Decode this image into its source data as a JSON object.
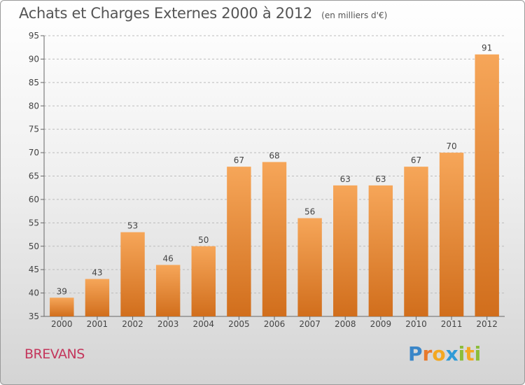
{
  "header": {
    "title": "Achats et Charges Externes 2000 à 2012",
    "unit": "(en milliers d'€)"
  },
  "footer": {
    "commune": "BREVANS",
    "logo_text": "Proxiti"
  },
  "colors": {
    "bar_top": "#f6a659",
    "bar_bottom": "#d16e1c",
    "grid": "#bbbbbb",
    "commune": "#c4365c"
  },
  "chart_data": {
    "type": "bar",
    "title": "Achats et Charges Externes 2000 à 2012",
    "subtitle": "(en milliers d'€)",
    "categories": [
      "2000",
      "2001",
      "2002",
      "2003",
      "2004",
      "2005",
      "2006",
      "2007",
      "2008",
      "2009",
      "2010",
      "2011",
      "2012"
    ],
    "values": [
      39,
      43,
      53,
      46,
      50,
      67,
      68,
      56,
      63,
      63,
      67,
      70,
      91
    ],
    "ylim": [
      35,
      95
    ],
    "yticks": [
      35,
      40,
      45,
      50,
      55,
      60,
      65,
      70,
      75,
      80,
      85,
      90,
      95
    ],
    "grid": true,
    "data_labels": true
  }
}
